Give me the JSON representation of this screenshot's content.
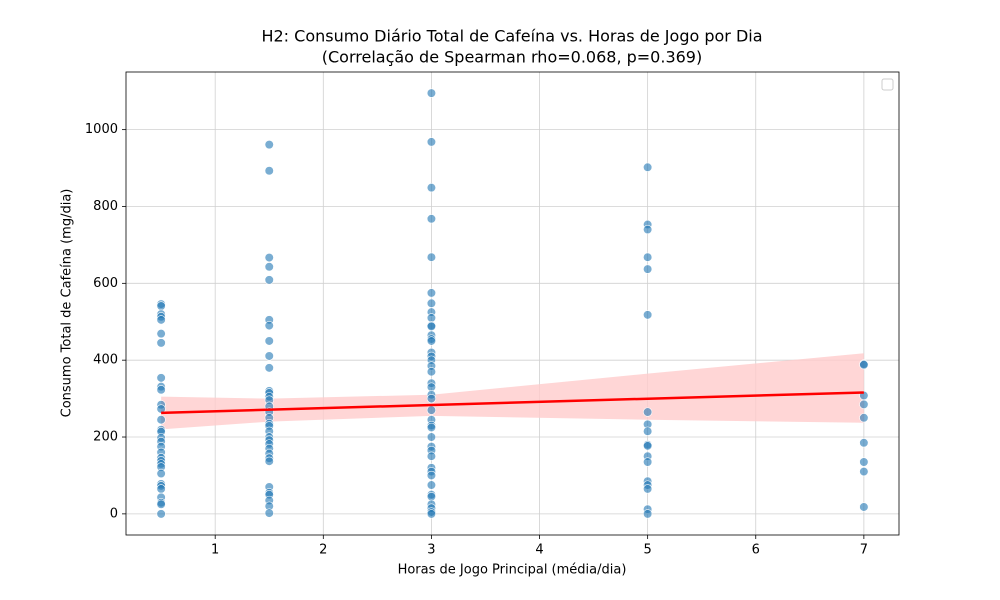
{
  "chart_data": {
    "type": "scatter",
    "title": "H2: Consumo Diário Total de Cafeína vs. Horas de Jogo por Dia",
    "subtitle": "(Correlação de Spearman rho=0.068, p=0.369)",
    "x_label": "Horas de Jogo Principal (média/dia)",
    "y_label": "Consumo Total de Cafeína (mg/dia)",
    "color": "#1f77b4",
    "groups": [
      {
        "x": 0.5,
        "values": [
          546,
          541,
          520,
          513,
          505,
          469,
          445,
          354,
          331,
          323,
          284,
          273,
          245,
          219,
          214,
          198,
          188,
          175,
          160,
          146,
          138,
          130,
          122,
          105,
          78,
          73,
          65,
          43,
          29,
          25,
          0
        ]
      },
      {
        "x": 1.5,
        "values": [
          961,
          893,
          667,
          643,
          609,
          505,
          490,
          450,
          411,
          380,
          320,
          315,
          305,
          296,
          280,
          265,
          250,
          235,
          229,
          215,
          200,
          192,
          182,
          170,
          157,
          145,
          137,
          70,
          55,
          50,
          35,
          20,
          2
        ]
      },
      {
        "x": 3,
        "values": [
          1095,
          968,
          849,
          768,
          668,
          575,
          548,
          525,
          510,
          490,
          488,
          465,
          455,
          450,
          420,
          410,
          400,
          385,
          370,
          340,
          330,
          310,
          300,
          270,
          245,
          230,
          225,
          200,
          175,
          165,
          150,
          120,
          110,
          100,
          75,
          50,
          45,
          25,
          15,
          5,
          0
        ]
      },
      {
        "x": 5,
        "values": [
          902,
          753,
          740,
          668,
          637,
          518,
          265,
          233,
          215,
          180,
          177,
          150,
          135,
          85,
          75,
          65,
          12,
          0
        ]
      },
      {
        "x": 7,
        "values": [
          390,
          388,
          308,
          285,
          250,
          185,
          135,
          110,
          18
        ]
      }
    ],
    "regression": {
      "color": "#ff0000",
      "band_color": "#ffcccc",
      "x": [
        0.5,
        7
      ],
      "values": [
        263,
        316
      ],
      "ci_x": [
        0.5,
        1.5,
        3,
        5,
        7
      ],
      "ci_lower": [
        220,
        240,
        255,
        245,
        237
      ],
      "ci_upper": [
        305,
        300,
        310,
        365,
        418
      ]
    },
    "xlim": [
      0.175,
      7.325
    ],
    "ylim": [
      -55,
      1150
    ],
    "xticks": [
      1,
      2,
      3,
      4,
      5,
      6,
      7
    ],
    "yticks": [
      0,
      200,
      400,
      600,
      800,
      1000
    ],
    "grid": true
  }
}
